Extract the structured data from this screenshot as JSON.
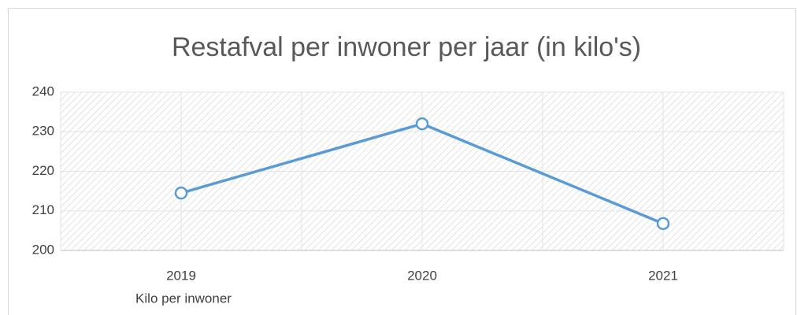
{
  "chart_data": {
    "type": "line",
    "title": "Restafval per inwoner per jaar (in kilo's)",
    "categories": [
      "2019",
      "2020",
      "2021"
    ],
    "series": [
      {
        "name": "Kilo per inwoner",
        "color": "#5b9bd5",
        "values": [
          214.5,
          232,
          206.8
        ]
      }
    ],
    "ylim": [
      200,
      240
    ],
    "yticks": [
      200,
      210,
      220,
      230,
      240
    ],
    "grid": true
  }
}
